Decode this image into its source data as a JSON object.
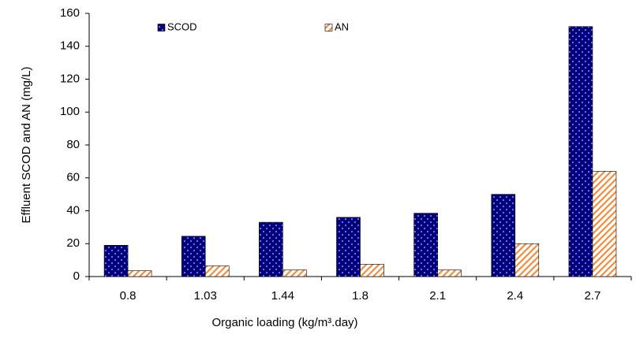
{
  "chart_data": {
    "type": "bar",
    "x_label": "Organic loading (kg/m³.day)",
    "y_label": "Effluent SCOD and AN (mg/L)",
    "categories": [
      "0.8",
      "1.03",
      "1.44",
      "1.8",
      "2.1",
      "2.4",
      "2.7"
    ],
    "series": [
      {
        "name": "SCOD",
        "color": "#000080",
        "values": [
          19,
          24.5,
          33,
          36,
          38.5,
          50,
          152
        ]
      },
      {
        "name": "AN",
        "color": "#f28c3c",
        "values": [
          3.5,
          6.5,
          4,
          7.5,
          4,
          20,
          64
        ]
      }
    ],
    "ylim": [
      0,
      160
    ],
    "yticks": [
      0,
      20,
      40,
      60,
      80,
      100,
      120,
      140,
      160
    ],
    "grid": false,
    "legend": "top"
  }
}
